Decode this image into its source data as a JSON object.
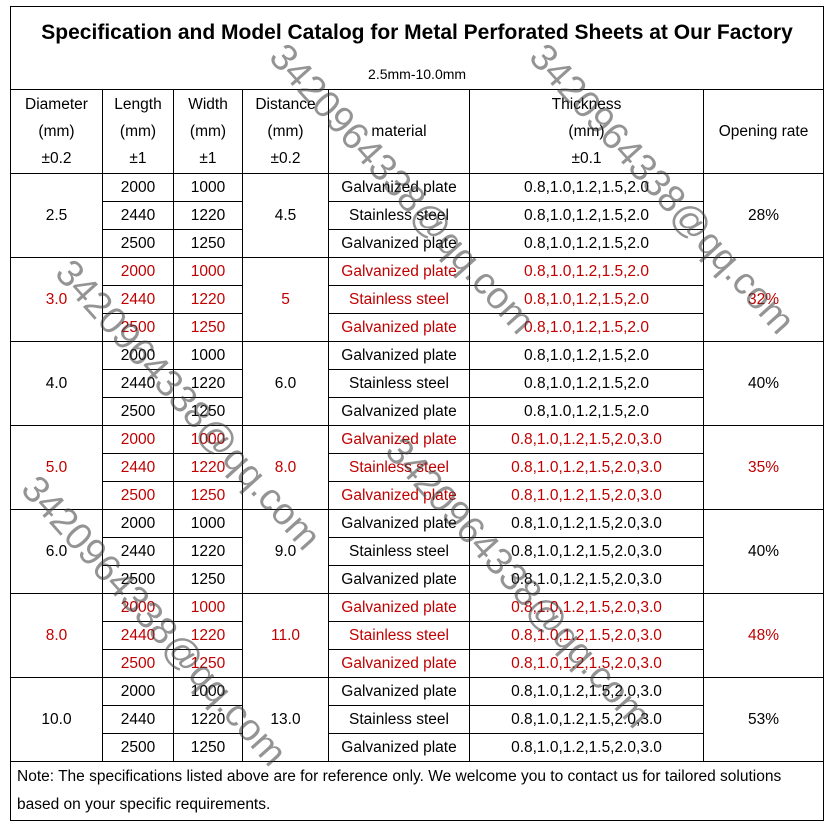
{
  "header": {
    "title": "Specification and Model Catalog for Metal Perforated Sheets at Our Factory",
    "subtitle": "2.5mm-10.0mm"
  },
  "table": {
    "columns": [
      [
        "Diameter",
        "(mm)",
        "±0.2"
      ],
      [
        "Length",
        "(mm)",
        "±1"
      ],
      [
        "Width",
        "(mm)",
        "±1"
      ],
      [
        "Distance",
        "(mm)",
        "±0.2"
      ],
      [
        "material"
      ],
      [
        "Thickness",
        "(mm)",
        "±0.1"
      ],
      [
        "Opening rate"
      ]
    ],
    "groups": [
      {
        "diameter": "2.5",
        "distance": "4.5",
        "opening_rate": "28%",
        "color": "#000000",
        "rows": [
          [
            "2000",
            "1000",
            "Galvanized plate",
            "0.8,1.0,1.2,1.5,2.0"
          ],
          [
            "2440",
            "1220",
            "Stainless steel",
            "0.8,1.0,1.2,1.5,2.0"
          ],
          [
            "2500",
            "1250",
            "Galvanized plate",
            "0.8,1.0,1.2,1.5,2.0"
          ]
        ]
      },
      {
        "diameter": "3.0",
        "distance": "5",
        "opening_rate": "32%",
        "color": "#c00000",
        "rows": [
          [
            "2000",
            "1000",
            "Galvanized plate",
            "0.8,1.0,1.2,1.5,2.0"
          ],
          [
            "2440",
            "1220",
            "Stainless steel",
            "0.8,1.0,1.2,1.5,2.0"
          ],
          [
            "2500",
            "1250",
            "Galvanized plate",
            "0.8,1.0,1.2,1.5,2.0"
          ]
        ]
      },
      {
        "diameter": "4.0",
        "distance": "6.0",
        "opening_rate": "40%",
        "color": "#000000",
        "rows": [
          [
            "2000",
            "1000",
            "Galvanized plate",
            "0.8,1.0,1.2,1.5,2.0"
          ],
          [
            "2440",
            "1220",
            "Stainless steel",
            "0.8,1.0,1.2,1.5,2.0"
          ],
          [
            "2500",
            "1250",
            "Galvanized plate",
            "0.8,1.0,1.2,1.5,2.0"
          ]
        ]
      },
      {
        "diameter": "5.0",
        "distance": "8.0",
        "opening_rate": "35%",
        "color": "#c00000",
        "rows": [
          [
            "2000",
            "1000",
            "Galvanized plate",
            "0.8,1.0,1.2,1.5,2.0,3.0"
          ],
          [
            "2440",
            "1220",
            "Stainless steel",
            "0.8,1.0,1.2,1.5,2.0,3.0"
          ],
          [
            "2500",
            "1250",
            "Galvanized plate",
            "0.8,1.0,1.2,1.5,2.0,3.0"
          ]
        ]
      },
      {
        "diameter": "6.0",
        "distance": "9.0",
        "opening_rate": "40%",
        "color": "#000000",
        "rows": [
          [
            "2000",
            "1000",
            "Galvanized plate",
            "0.8,1.0,1.2,1.5,2.0,3.0"
          ],
          [
            "2440",
            "1220",
            "Stainless steel",
            "0.8,1.0,1.2,1.5,2.0,3.0"
          ],
          [
            "2500",
            "1250",
            "Galvanized plate",
            "0.8,1.0,1.2,1.5,2.0,3.0"
          ]
        ]
      },
      {
        "diameter": "8.0",
        "distance": "11.0",
        "opening_rate": "48%",
        "color": "#c00000",
        "rows": [
          [
            "2000",
            "1000",
            "Galvanized plate",
            "0.8,1.0,1.2,1.5,2.0,3.0"
          ],
          [
            "2440",
            "1220",
            "Stainless steel",
            "0.8,1.0,1.2,1.5,2.0,3.0"
          ],
          [
            "2500",
            "1250",
            "Galvanized plate",
            "0.8,1.0,1.2,1.5,2.0,3.0"
          ]
        ]
      },
      {
        "diameter": "10.0",
        "distance": "13.0",
        "opening_rate": "53%",
        "color": "#000000",
        "rows": [
          [
            "2000",
            "1000",
            "Galvanized plate",
            "0.8,1.0,1.2,1.5,2.0,3.0"
          ],
          [
            "2440",
            "1220",
            "Stainless steel",
            "0.8,1.0,1.2,1.5,2.0,3.0"
          ],
          [
            "2500",
            "1250",
            "Galvanized plate",
            "0.8,1.0,1.2,1.5,2.0,3.0"
          ]
        ]
      }
    ]
  },
  "note": "Note: The specifications listed above are for reference only. We welcome you to contact us for tailored solutions based on your specific requirements.",
  "watermark": "3420964338@qq.com"
}
